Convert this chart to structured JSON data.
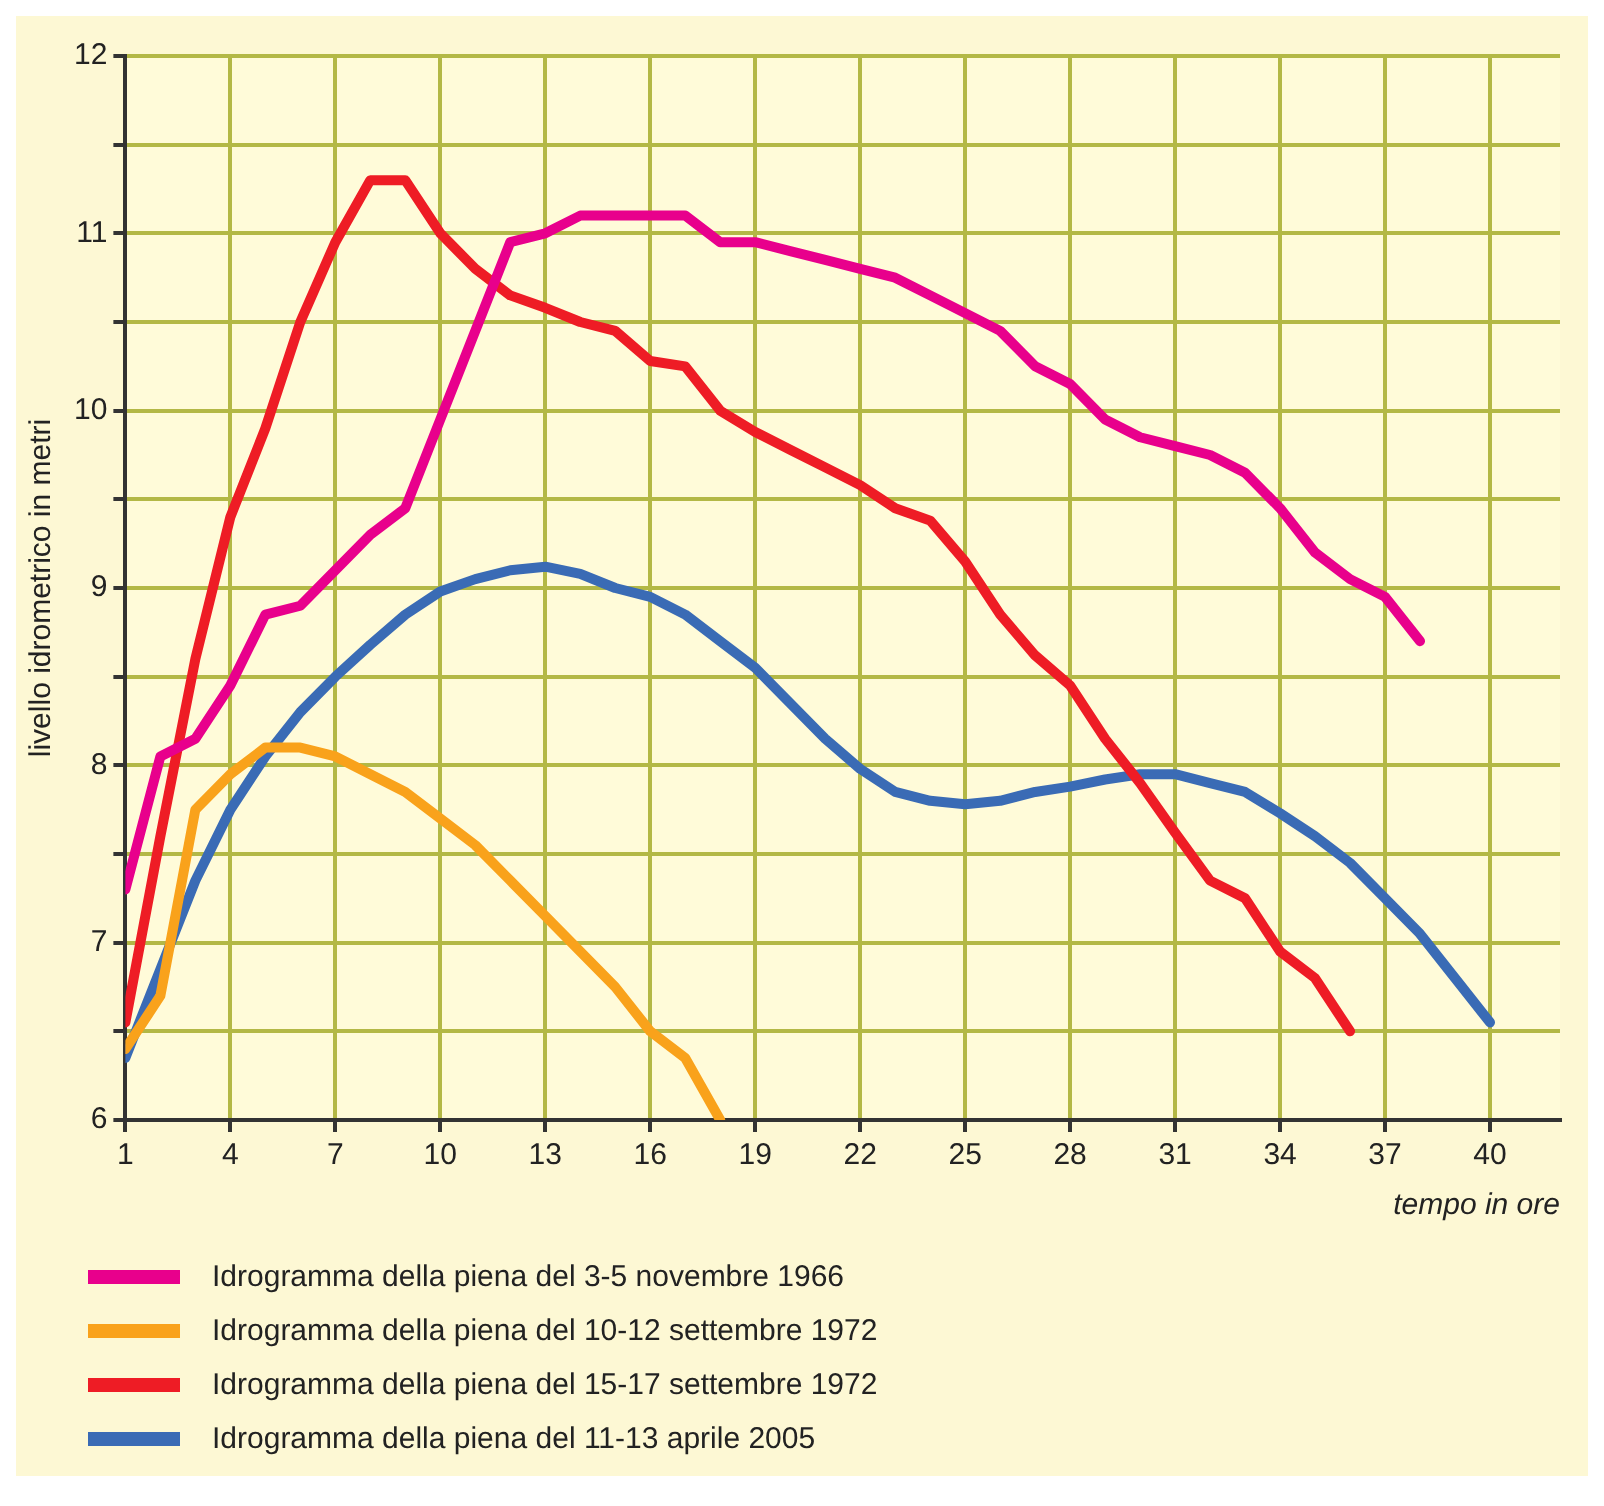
{
  "chart_data": {
    "type": "line",
    "xlabel": "tempo in ore",
    "ylabel": "livello idrometrico in metri",
    "xlim": [
      1,
      42
    ],
    "xticks": [
      1,
      4,
      7,
      10,
      13,
      16,
      19,
      22,
      25,
      28,
      31,
      34,
      37,
      40
    ],
    "ylim": [
      6,
      12
    ],
    "yticks": [
      6,
      {
        "value": 6.5,
        "label": null
      },
      7,
      {
        "value": 7.5,
        "label": null
      },
      8,
      {
        "value": 8.5,
        "label": null
      },
      9,
      {
        "value": 9.5,
        "label": null
      },
      10,
      {
        "value": 10.5,
        "label": null
      },
      11,
      {
        "value": 11.5,
        "label": null
      },
      12
    ],
    "grid": true,
    "legend": "bottom",
    "marker": "none",
    "line_style": "solid",
    "series": [
      {
        "name": "Idrogramma della piena del 3-5 novembre 1966",
        "color": "#e8008c",
        "x": [
          1,
          2,
          3,
          4,
          5,
          6,
          7,
          8,
          9,
          10,
          11,
          12,
          13,
          14,
          15,
          16,
          17,
          18,
          19,
          20,
          21,
          22,
          23,
          24,
          25,
          26,
          27,
          28,
          29,
          30,
          31,
          32,
          33,
          34,
          35,
          36,
          37,
          38
        ],
        "values": [
          7.3,
          8.05,
          8.15,
          8.45,
          8.85,
          8.9,
          9.1,
          9.3,
          9.45,
          9.95,
          10.45,
          10.95,
          11.0,
          11.1,
          11.1,
          11.1,
          11.1,
          10.95,
          10.95,
          10.9,
          10.85,
          10.8,
          10.75,
          10.65,
          10.55,
          10.45,
          10.25,
          10.15,
          9.95,
          9.85,
          9.8,
          9.75,
          9.65,
          9.45,
          9.2,
          9.05,
          8.95,
          8.7
        ]
      },
      {
        "name": "Idrogramma della piena del 10-12 settembre 1972",
        "color": "#f9a21b",
        "x": [
          1,
          2,
          3,
          4,
          5,
          6,
          7,
          8,
          9,
          10,
          11,
          12,
          13,
          14,
          15,
          16,
          17,
          18
        ],
        "values": [
          6.4,
          6.7,
          7.75,
          7.95,
          8.1,
          8.1,
          8.05,
          7.95,
          7.85,
          7.7,
          7.55,
          7.35,
          7.15,
          6.95,
          6.75,
          6.5,
          6.35,
          6.0
        ]
      },
      {
        "name": "Idrogramma della piena del 15-17 settembre 1972",
        "color": "#ee1c25",
        "x": [
          1,
          2,
          3,
          4,
          5,
          6,
          7,
          8,
          9,
          10,
          11,
          12,
          13,
          14,
          15,
          16,
          17,
          18,
          19,
          20,
          21,
          22,
          23,
          24,
          25,
          26,
          27,
          28,
          29,
          30,
          31,
          32,
          33,
          34,
          35,
          36
        ],
        "values": [
          6.55,
          7.6,
          8.6,
          9.4,
          9.9,
          10.5,
          10.95,
          11.3,
          11.3,
          11.0,
          10.8,
          10.65,
          10.58,
          10.5,
          10.45,
          10.28,
          10.25,
          10.0,
          9.88,
          9.78,
          9.68,
          9.58,
          9.45,
          9.38,
          9.15,
          8.85,
          8.62,
          8.45,
          8.15,
          7.9,
          7.62,
          7.35,
          7.25,
          6.95,
          6.8,
          6.5
        ]
      },
      {
        "name": "Idrogramma della piena del 11-13 aprile 2005",
        "color": "#3a6bb5",
        "x": [
          1,
          2,
          3,
          4,
          5,
          6,
          7,
          8,
          9,
          10,
          11,
          12,
          13,
          14,
          15,
          16,
          17,
          18,
          19,
          20,
          21,
          22,
          23,
          24,
          25,
          26,
          27,
          28,
          29,
          30,
          31,
          32,
          33,
          34,
          35,
          36,
          37,
          38,
          39,
          40
        ],
        "values": [
          6.35,
          6.85,
          7.35,
          7.75,
          8.05,
          8.3,
          8.5,
          8.68,
          8.85,
          8.98,
          9.05,
          9.1,
          9.12,
          9.08,
          9.0,
          8.95,
          8.85,
          8.7,
          8.55,
          8.35,
          8.15,
          7.98,
          7.85,
          7.8,
          7.78,
          7.8,
          7.85,
          7.88,
          7.92,
          7.95,
          7.95,
          7.9,
          7.85,
          7.73,
          7.6,
          7.45,
          7.25,
          7.05,
          6.8,
          6.55
        ]
      }
    ]
  }
}
